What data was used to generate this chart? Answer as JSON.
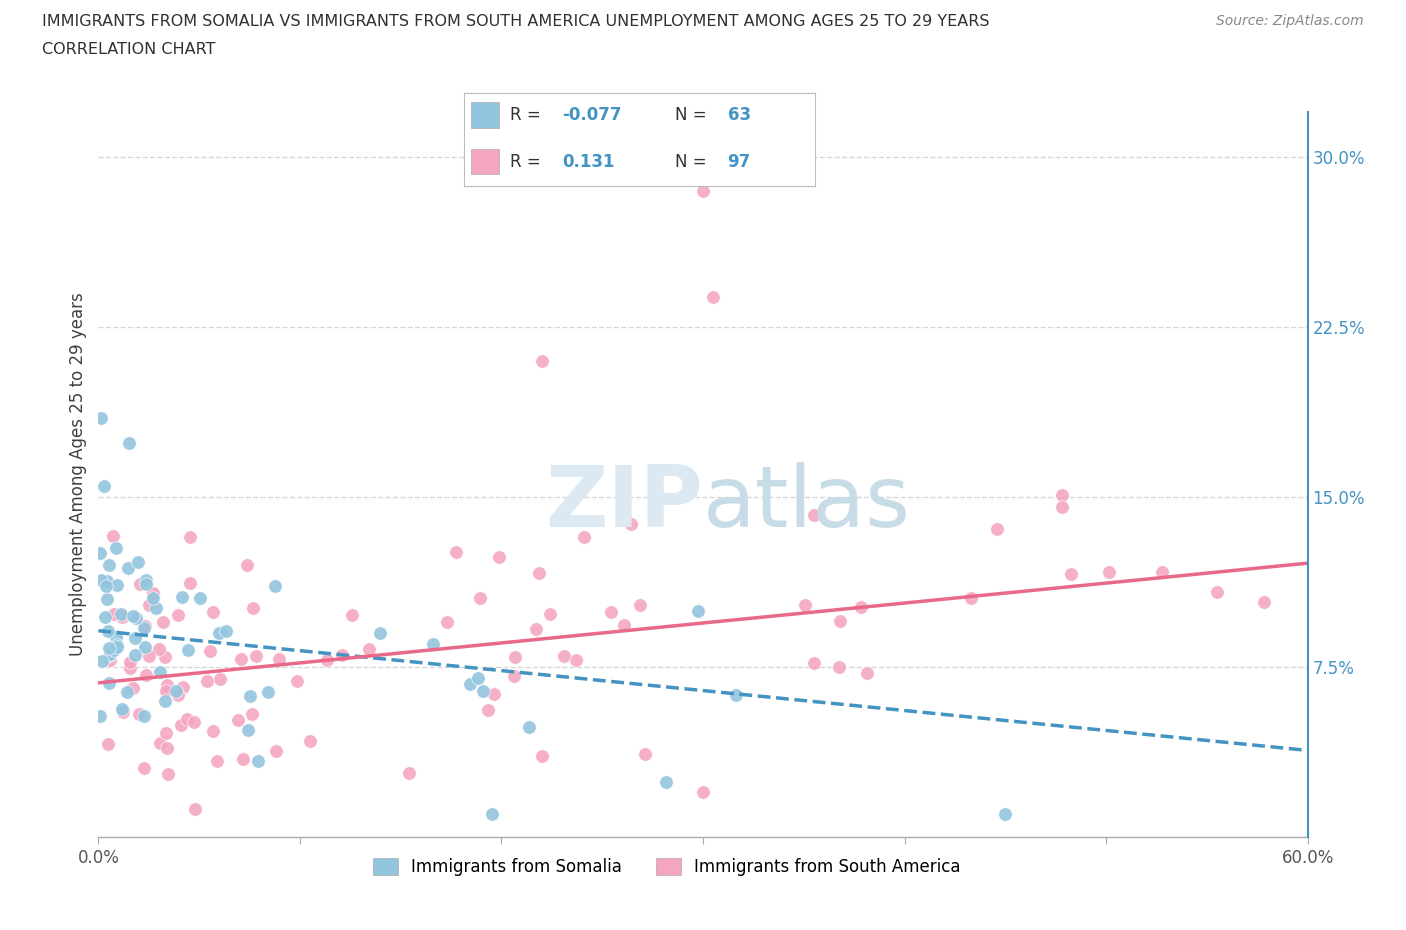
{
  "title_line1": "IMMIGRANTS FROM SOMALIA VS IMMIGRANTS FROM SOUTH AMERICA UNEMPLOYMENT AMONG AGES 25 TO 29 YEARS",
  "title_line2": "CORRELATION CHART",
  "source_text": "Source: ZipAtlas.com",
  "ylabel": "Unemployment Among Ages 25 to 29 years",
  "xlim": [
    0.0,
    0.6
  ],
  "ylim": [
    0.0,
    0.32
  ],
  "somalia_R": -0.077,
  "somalia_N": 63,
  "south_america_R": 0.131,
  "south_america_N": 97,
  "somalia_color": "#92c5de",
  "south_america_color": "#f4a6c0",
  "somalia_line_color": "#4393c3",
  "south_america_line_color": "#e8698a",
  "somalia_line_style": "--",
  "south_america_line_style": "-",
  "somalia_slope": -0.088,
  "somalia_intercept": 0.091,
  "south_america_slope": 0.088,
  "south_america_intercept": 0.068,
  "background_color": "#ffffff",
  "grid_color": "#cccccc",
  "title_color": "#303030",
  "axis_label_color": "#404040",
  "tick_color_right": "#4393c3",
  "watermark_text": "ZIPatlas",
  "watermark_color": "#dce9f2",
  "legend_R_color": "#4393c3",
  "legend_N_color": "#4393c3",
  "legend_label_color": "#333333"
}
